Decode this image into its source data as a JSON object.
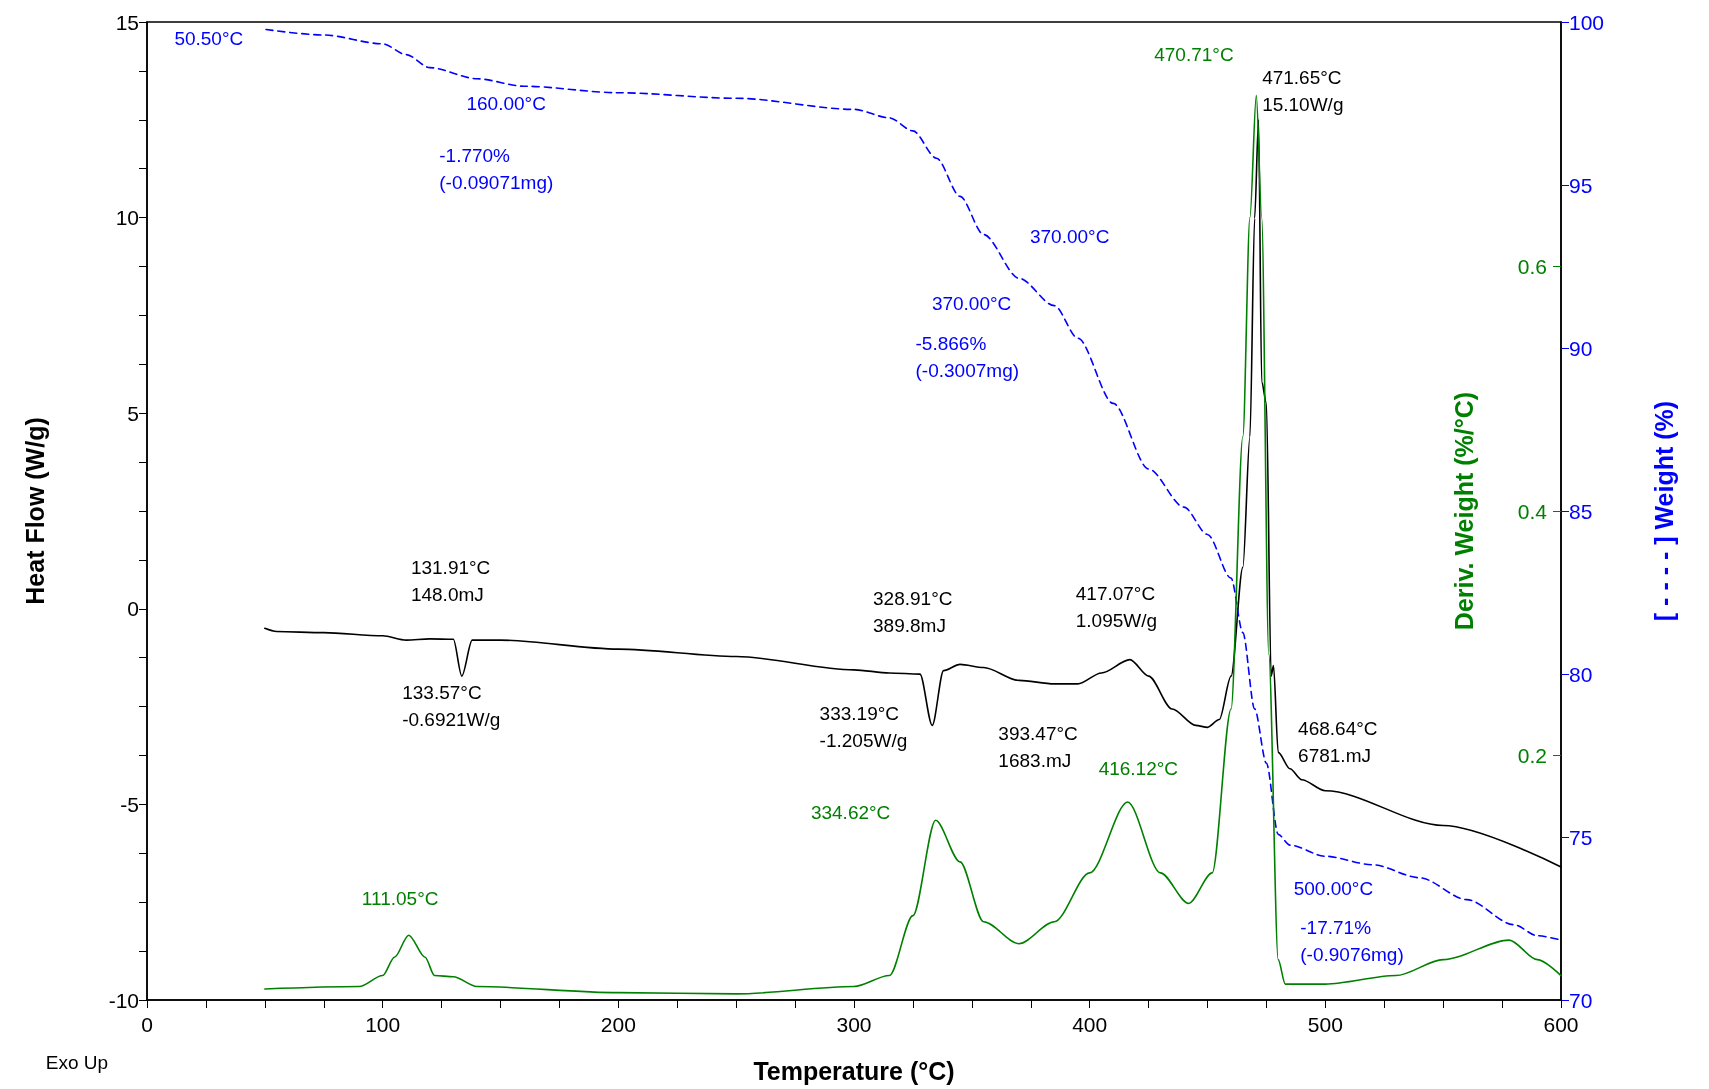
{
  "chart_data": {
    "type": "line",
    "xlabel": "Temperature (°C)",
    "ylabel": "Heat Flow (W/g)",
    "y2label": "[ - - - - ] Weight (%)",
    "y3label": "Deriv. Weight (%/°C)",
    "xlim": [
      0,
      600
    ],
    "xticks": [
      0,
      {
        "value": 25,
        "label": null
      },
      {
        "value": 50,
        "label": null
      },
      {
        "value": 75,
        "label": null
      },
      100,
      {
        "value": 125,
        "label": null
      },
      {
        "value": 150,
        "label": null
      },
      {
        "value": 175,
        "label": null
      },
      200,
      {
        "value": 225,
        "label": null
      },
      {
        "value": 250,
        "label": null
      },
      {
        "value": 275,
        "label": null
      },
      300,
      {
        "value": 325,
        "label": null
      },
      {
        "value": 350,
        "label": null
      },
      {
        "value": 375,
        "label": null
      },
      400,
      {
        "value": 425,
        "label": null
      },
      {
        "value": 450,
        "label": null
      },
      {
        "value": 475,
        "label": null
      },
      500,
      {
        "value": 525,
        "label": null
      },
      {
        "value": 550,
        "label": null
      },
      {
        "value": 575,
        "label": null
      },
      600
    ],
    "ylim": [
      -10,
      15
    ],
    "yticks": [
      -10,
      {
        "value": -8.75,
        "label": null
      },
      {
        "value": -7.5,
        "label": null
      },
      {
        "value": -6.25,
        "label": null
      },
      -5,
      {
        "value": -3.75,
        "label": null
      },
      {
        "value": -2.5,
        "label": null
      },
      {
        "value": -1.25,
        "label": null
      },
      0,
      {
        "value": 1.25,
        "label": null
      },
      {
        "value": 2.5,
        "label": null
      },
      {
        "value": 3.75,
        "label": null
      },
      5,
      {
        "value": 6.25,
        "label": null
      },
      {
        "value": 7.5,
        "label": null
      },
      {
        "value": 8.75,
        "label": null
      },
      10,
      {
        "value": 11.25,
        "label": null
      },
      {
        "value": 12.5,
        "label": null
      },
      {
        "value": 13.75,
        "label": null
      },
      15
    ],
    "y2lim": [
      70,
      100
    ],
    "y2ticks": [
      70,
      75,
      80,
      85,
      90,
      95,
      100
    ],
    "y3lim": [
      0,
      0.8
    ],
    "y3ticks": [
      0.2,
      0.4,
      0.6
    ],
    "marker": "none",
    "series": [
      {
        "color": "#000000",
        "line_style": "solid",
        "x": [
          50,
          55,
          75,
          100,
          110,
          120,
          130,
          133.57,
          138,
          150,
          200,
          250,
          300,
          315,
          328,
          333.19,
          338,
          345,
          355,
          370,
          385,
          395,
          405,
          417.07,
          425,
          435,
          445,
          450,
          455,
          460,
          465,
          468,
          470,
          471.65,
          473,
          475,
          477,
          478,
          480,
          485,
          490,
          500,
          550,
          600
        ],
        "values": [
          -0.5,
          -0.58,
          -0.61,
          -0.69,
          -0.8,
          -0.77,
          -0.78,
          -1.72,
          -0.8,
          -0.8,
          -1.03,
          -1.22,
          -1.56,
          -1.64,
          -1.67,
          -2.98,
          -1.58,
          -1.42,
          -1.5,
          -1.83,
          -1.92,
          -1.92,
          -1.64,
          -1.3,
          -1.72,
          -2.56,
          -2.98,
          -3.03,
          -2.83,
          -1.72,
          1.06,
          4.4,
          9.98,
          12.5,
          5.8,
          5.25,
          -1.72,
          -1.45,
          -3.67,
          -4.09,
          -4.37,
          -4.65,
          -5.54,
          -6.6
        ]
      },
      {
        "color": "#0000ff",
        "line_style": "dashed",
        "axis": "y2",
        "x": [
          50.5,
          75,
          100,
          110,
          120,
          140,
          160,
          200,
          250,
          300,
          315,
          325,
          335,
          345,
          355,
          370,
          385,
          395,
          410,
          425,
          440,
          450,
          460,
          465,
          470,
          475,
          480,
          485,
          500,
          520,
          540,
          560,
          580,
          590,
          600
        ],
        "values": [
          99.77,
          99.6,
          99.33,
          99.0,
          98.6,
          98.26,
          98.03,
          97.83,
          97.66,
          97.32,
          97.06,
          96.66,
          95.82,
          94.65,
          93.48,
          92.14,
          91.3,
          90.3,
          88.3,
          86.29,
          85.12,
          84.28,
          82.94,
          81.27,
          78.93,
          77.26,
          75.08,
          74.75,
          74.41,
          74.15,
          73.75,
          73.08,
          72.31,
          71.97,
          71.84
        ]
      },
      {
        "color": "#008000",
        "line_style": "solid",
        "axis": "y3",
        "x": [
          50,
          90,
          100,
          105,
          111.05,
          118,
          122,
          130,
          140,
          200,
          250,
          300,
          315,
          325,
          334.62,
          345,
          355,
          370,
          385,
          400,
          416.12,
          430,
          442,
          452,
          460,
          465,
          468,
          470.71,
          473,
          476,
          480,
          483,
          500,
          530,
          550,
          578,
          590,
          600
        ],
        "values": [
          0.009,
          0.011,
          0.02,
          0.035,
          0.053,
          0.035,
          0.02,
          0.019,
          0.011,
          0.006,
          0.005,
          0.011,
          0.02,
          0.069,
          0.147,
          0.113,
          0.064,
          0.046,
          0.064,
          0.104,
          0.162,
          0.104,
          0.079,
          0.104,
          0.238,
          0.461,
          0.64,
          0.74,
          0.64,
          0.283,
          0.033,
          0.013,
          0.013,
          0.02,
          0.033,
          0.049,
          0.033,
          0.02
        ]
      }
    ],
    "annotations": [
      "Exo Up",
      "50.50°C",
      "160.00°C",
      "-1.770%\n(-0.09071mg)",
      "370.00°C",
      "370.00°C",
      "-5.866%\n(-0.3007mg)",
      "500.00°C",
      "-17.71%\n(-0.9076mg)",
      "470.71°C",
      "111.05°C",
      "334.62°C",
      "416.12°C",
      "471.65°C\n15.10W/g",
      "131.91°C\n148.0mJ",
      "133.57°C\n-0.6921W/g",
      "328.91°C\n389.8mJ",
      "333.19°C\n-1.205W/g",
      "417.07°C\n1.095W/g",
      "393.47°C\n1683.mJ",
      "468.64°C\n6781.mJ"
    ]
  }
}
